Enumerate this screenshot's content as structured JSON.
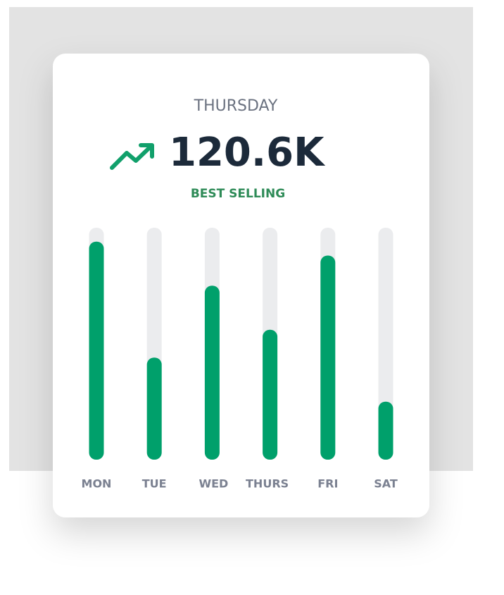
{
  "header": {
    "title": "THURSDAY",
    "value": "120.6K",
    "subtitle": "BEST SELLING"
  },
  "chart_data": {
    "type": "bar",
    "categories": [
      "MON",
      "TUE",
      "WED",
      "THURS",
      "FRI",
      "SAT"
    ],
    "values": [
      94,
      44,
      75,
      56,
      88,
      25
    ],
    "color": "#00a06b",
    "track_color": "#ebecee",
    "ylim": [
      0,
      100
    ]
  }
}
